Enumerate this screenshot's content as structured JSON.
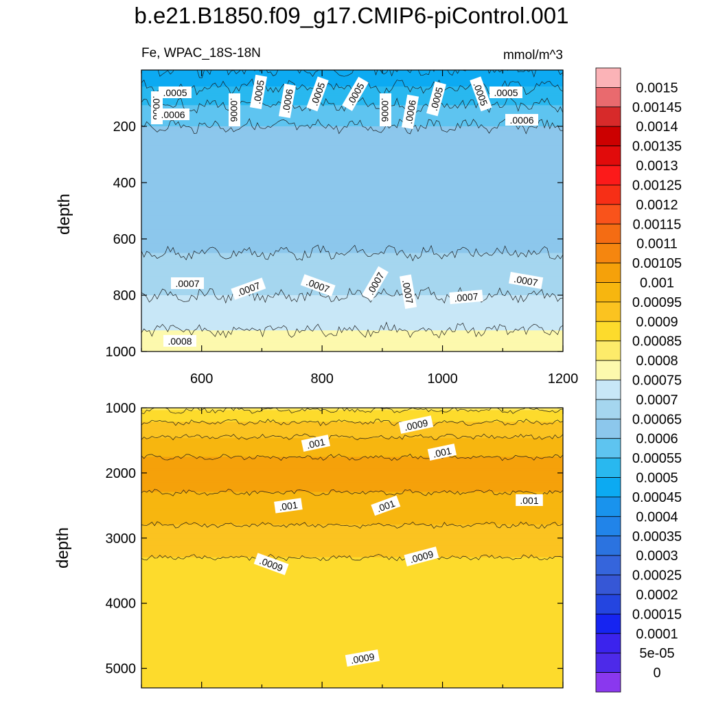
{
  "title": "b.e21.B1850.f09_g17.CMIP6-piControl.001",
  "chart_data": [
    {
      "type": "heatmap",
      "panel": "upper",
      "left_string": "Fe, WPAC_18S-18N",
      "right_string": "mmol/m^3",
      "ylabel": "depth",
      "xlim": [
        500,
        1200
      ],
      "ylim": [
        1000,
        0
      ],
      "x_ticks": [
        600,
        800,
        1000,
        1200
      ],
      "y_ticks": [
        200,
        400,
        600,
        800,
        1000
      ],
      "depth_profile": [
        {
          "depth": 0,
          "value": 0.00045
        },
        {
          "depth": 60,
          "value": 0.0005
        },
        {
          "depth": 140,
          "value": 0.00056
        },
        {
          "depth": 200,
          "value": 0.0006
        },
        {
          "depth": 300,
          "value": 0.00064
        },
        {
          "depth": 500,
          "value": 0.00062
        },
        {
          "depth": 700,
          "value": 0.00066
        },
        {
          "depth": 800,
          "value": 0.0007
        },
        {
          "depth": 900,
          "value": 0.00074
        },
        {
          "depth": 1000,
          "value": 0.00078
        }
      ],
      "contour_labels": [
        ".0005",
        ".0006",
        ".0007",
        ".0008"
      ]
    },
    {
      "type": "heatmap",
      "panel": "lower",
      "ylabel": "depth",
      "xlim": [
        500,
        1200
      ],
      "ylim": [
        5300,
        1000
      ],
      "y_ticks": [
        1000,
        2000,
        3000,
        4000,
        5000
      ],
      "depth_profile": [
        {
          "depth": 1000,
          "value": 0.00084
        },
        {
          "depth": 1300,
          "value": 0.00092
        },
        {
          "depth": 1600,
          "value": 0.00098
        },
        {
          "depth": 2000,
          "value": 0.00103
        },
        {
          "depth": 2500,
          "value": 0.00098
        },
        {
          "depth": 3000,
          "value": 0.00093
        },
        {
          "depth": 3500,
          "value": 0.00088
        },
        {
          "depth": 4700,
          "value": 0.00087
        },
        {
          "depth": 5300,
          "value": 0.0009
        }
      ],
      "contour_labels": [
        ".0009",
        ".001"
      ]
    }
  ],
  "colorbar": {
    "labels": [
      "0.0015",
      "0.00145",
      "0.0014",
      "0.00135",
      "0.0013",
      "0.00125",
      "0.0012",
      "0.00115",
      "0.0011",
      "0.00105",
      "0.001",
      "0.00095",
      "0.0009",
      "0.00085",
      "0.0008",
      "0.00075",
      "0.0007",
      "0.00065",
      "0.0006",
      "0.00055",
      "0.0005",
      "0.00045",
      "0.0004",
      "0.00035",
      "0.0003",
      "0.00025",
      "0.0002",
      "0.00015",
      "0.0001",
      "5e-05",
      "0"
    ],
    "colors_top_to_bottom": [
      "#fbb3b7",
      "#e96a6e",
      "#d72a2a",
      "#cc0000",
      "#e10b0b",
      "#fc1a1a",
      "#f72f16",
      "#f9531b",
      "#f46c13",
      "#f5860f",
      "#f5a10a",
      "#f7b60f",
      "#fbc320",
      "#fddb2c",
      "#fdeb6a",
      "#fdf9ad",
      "#c8e7f7",
      "#a5d6ef",
      "#8cc7ec",
      "#5ec4f0",
      "#29b8ef",
      "#0caaf2",
      "#1993ed",
      "#2184e9",
      "#2b73e0",
      "#3565dc",
      "#3657d6",
      "#2445e0",
      "#1624f1",
      "#3b23ed",
      "#4d2ae9",
      "#8a38ee"
    ]
  }
}
